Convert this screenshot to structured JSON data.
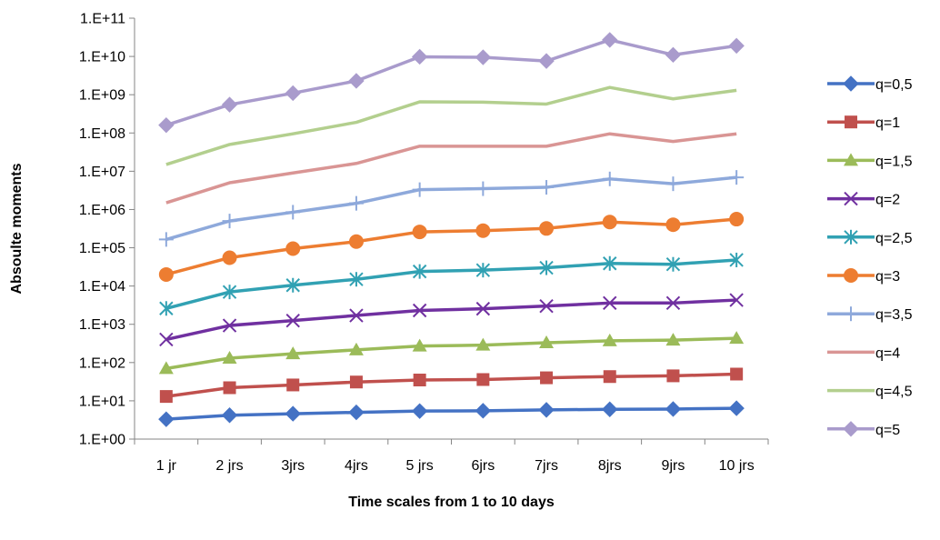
{
  "chart_data": {
    "type": "line",
    "title": "",
    "xlabel": "Time scales from 1 to 10 days",
    "ylabel": "Absoulte moments",
    "y_scale": "log",
    "ylim": [
      1,
      100000000000
    ],
    "y_tick_labels": [
      "1.E+00",
      "1.E+01",
      "1.E+02",
      "1.E+03",
      "1.E+04",
      "1.E+05",
      "1.E+06",
      "1.E+07",
      "1.E+08",
      "1.E+09",
      "1.E+10",
      "1.E+11"
    ],
    "categories": [
      "1 jr",
      "2 jrs",
      "3jrs",
      "4jrs",
      "5 jrs",
      "6jrs",
      "7jrs",
      "8jrs",
      "9jrs",
      "10 jrs"
    ],
    "grid": false,
    "legend_position": "right",
    "series": [
      {
        "name": "q=0,5",
        "color": "#4472C4",
        "marker": "diamond",
        "values": [
          3.3,
          4.2,
          4.6,
          5.0,
          5.4,
          5.5,
          5.8,
          6.0,
          6.1,
          6.4
        ]
      },
      {
        "name": "q=1",
        "color": "#C0504D",
        "marker": "square",
        "values": [
          13,
          22,
          26,
          31,
          35,
          36,
          40,
          43,
          45,
          50
        ]
      },
      {
        "name": "q=1,5",
        "color": "#9BBB59",
        "marker": "triangle",
        "values": [
          70,
          130,
          170,
          215,
          270,
          285,
          330,
          370,
          385,
          430
        ]
      },
      {
        "name": "q=2",
        "color": "#7030A0",
        "marker": "x",
        "values": [
          400,
          930,
          1250,
          1700,
          2300,
          2550,
          3000,
          3600,
          3600,
          4300
        ]
      },
      {
        "name": "q=2,5",
        "color": "#31A1B3",
        "marker": "asterisk",
        "values": [
          2600,
          7000,
          10500,
          15000,
          24000,
          26000,
          30000,
          39000,
          37000,
          48000
        ]
      },
      {
        "name": "q=3",
        "color": "#ED7D31",
        "marker": "circle",
        "values": [
          20000,
          55000,
          95000,
          145000,
          260000,
          280000,
          320000,
          470000,
          400000,
          560000
        ]
      },
      {
        "name": "q=3,5",
        "color": "#8EA9DB",
        "marker": "plus",
        "values": [
          165000,
          500000,
          850000,
          1450000,
          3300000,
          3500000,
          3800000,
          6300000,
          4700000,
          6900000
        ]
      },
      {
        "name": "q=4",
        "color": "#D99594",
        "marker": "none",
        "values": [
          1500000,
          5000000,
          9000000,
          16000000,
          45000000,
          45000000,
          45000000,
          95000000,
          60000000,
          95000000
        ]
      },
      {
        "name": "q=4,5",
        "color": "#B3CF8E",
        "marker": "none",
        "values": [
          15000000,
          50000000,
          95000000,
          190000000,
          650000000,
          640000000,
          570000000,
          1550000000,
          780000000,
          1300000000
        ]
      },
      {
        "name": "q=5",
        "color": "#A99BCC",
        "marker": "diamond",
        "values": [
          160000000,
          550000000,
          1100000000,
          2300000000,
          9800000000,
          9500000000,
          7600000000,
          27000000000,
          11000000000,
          19000000000
        ]
      }
    ]
  }
}
